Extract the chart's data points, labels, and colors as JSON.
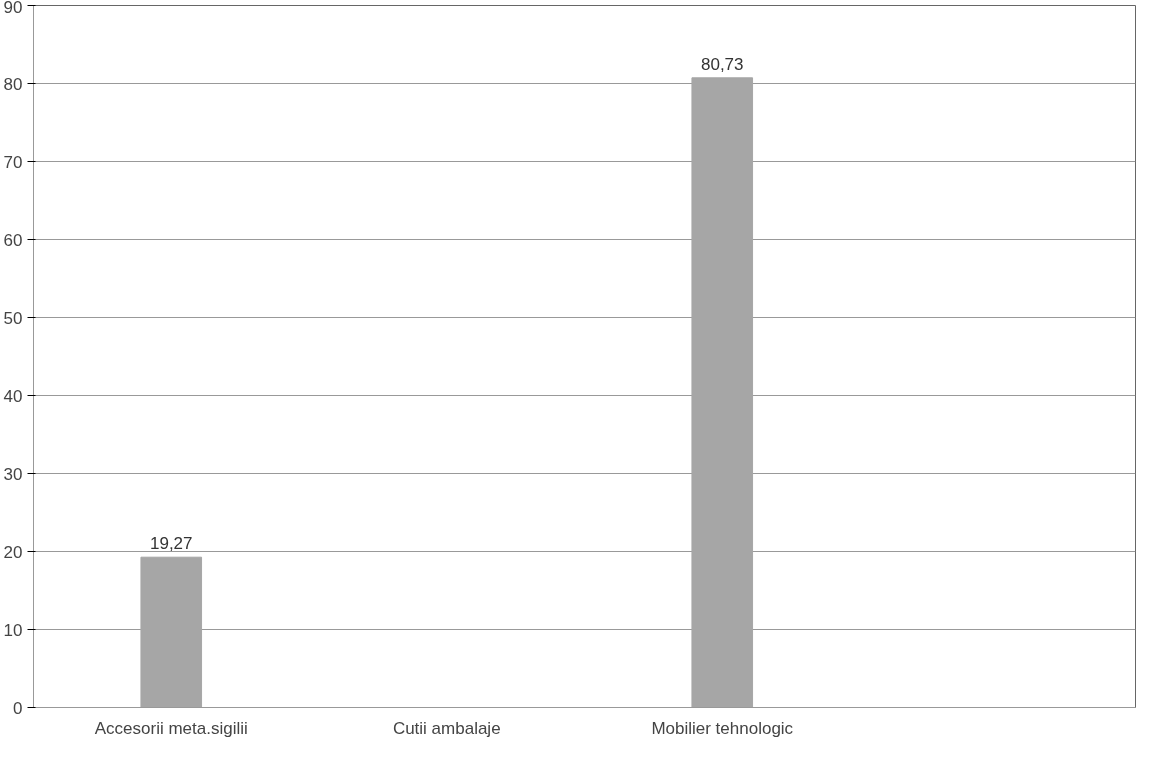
{
  "chart_data": {
    "type": "bar",
    "categories": [
      "Accesorii meta.sigilii",
      "Cutii ambalaje",
      "Mobilier tehnologic",
      null
    ],
    "values": [
      19.27,
      null,
      80.73,
      null
    ],
    "value_labels": [
      "19,27",
      null,
      "80,73",
      null
    ],
    "color": "#a6a6a6",
    "ylim": [
      0,
      90
    ],
    "yticks": [
      0,
      10,
      20,
      30,
      40,
      50,
      60,
      70,
      80,
      90
    ],
    "grid": "y"
  }
}
